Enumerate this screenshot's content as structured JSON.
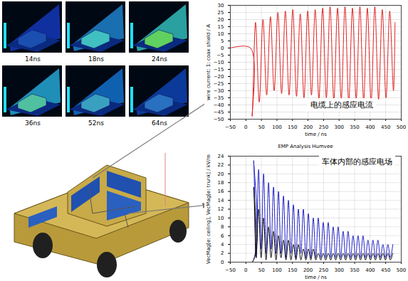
{
  "snapshots": {
    "labels": [
      "14ns",
      "18ns",
      "24ns",
      "36ns",
      "52ns",
      "64ns"
    ]
  },
  "chart_data": [
    {
      "type": "line",
      "annotation": "电缆上的感应电流",
      "x_label": "time / ns",
      "y_label": "wire current: 1: coax shield / A",
      "xlim": [
        -50,
        500
      ],
      "xticks": [
        -50,
        0,
        50,
        100,
        150,
        200,
        250,
        300,
        350,
        400,
        450,
        500
      ],
      "ylim": [
        -50,
        30
      ],
      "yticks": [
        -50,
        -45,
        -40,
        -35,
        -30,
        -25,
        -20,
        -15,
        -10,
        -5,
        0,
        5,
        10,
        15,
        20,
        25,
        30
      ],
      "grid": true,
      "x": [
        -50,
        15,
        20,
        31,
        43,
        55,
        67,
        79,
        91,
        103,
        115,
        127,
        139,
        151,
        163,
        175,
        187,
        199,
        211,
        223,
        235,
        247,
        259,
        271,
        283,
        295,
        307,
        319,
        331,
        343,
        355,
        367,
        379,
        391,
        403,
        415,
        427,
        439,
        451,
        463,
        475,
        480
      ],
      "series": [
        {
          "color": "#e02020",
          "values": [
            0,
            0,
            -48,
            18,
            -38,
            20,
            -33,
            22,
            -30,
            25,
            -32,
            26,
            -33,
            27,
            -34,
            24,
            -35,
            26,
            -33,
            27,
            -36,
            28,
            -35,
            29,
            -37,
            28,
            -36,
            29,
            -38,
            28,
            -36,
            29,
            -37,
            28,
            -38,
            29,
            -36,
            27,
            -35,
            26,
            -30,
            18
          ]
        }
      ]
    },
    {
      "type": "line",
      "title": "EMP Analysis Humvee",
      "annotation": "车体内部的感应电场",
      "x_label": "time / ns",
      "y_label": "VecMag[e: ceiling], VecMag[e: trunk] / kV/m",
      "xlim": [
        -50,
        500
      ],
      "xticks": [
        -50,
        0,
        50,
        100,
        150,
        200,
        250,
        300,
        350,
        400,
        450,
        500
      ],
      "ylim": [
        0,
        24
      ],
      "yticks": [
        0,
        2,
        4,
        6,
        8,
        10,
        12,
        14,
        16,
        18,
        20,
        22,
        24
      ],
      "grid": true,
      "x": [
        -50,
        20,
        25,
        33,
        41,
        49,
        57,
        65,
        73,
        81,
        89,
        97,
        105,
        113,
        121,
        129,
        137,
        145,
        153,
        161,
        169,
        177,
        185,
        193,
        201,
        209,
        217,
        225,
        233,
        241,
        249,
        257,
        265,
        273,
        281,
        289,
        297,
        305,
        313,
        321,
        329,
        337,
        345,
        353,
        361,
        369,
        377,
        385,
        393,
        401,
        409,
        417,
        425,
        433,
        441,
        449,
        457,
        465,
        473
      ],
      "series": [
        {
          "color": "#2020c8",
          "values": [
            0,
            0,
            23,
            1,
            21,
            3,
            20,
            2,
            18,
            3,
            17,
            2,
            16,
            2,
            15,
            1,
            14,
            2,
            13,
            1,
            12,
            2,
            12,
            1,
            11,
            1,
            10,
            1,
            10,
            1,
            9,
            1,
            9,
            1,
            8,
            1,
            8,
            1,
            7,
            1,
            7,
            1,
            6,
            1,
            6,
            1,
            6,
            1,
            5,
            1,
            5,
            1,
            5,
            1,
            4,
            1,
            4,
            1,
            4
          ]
        },
        {
          "color": "#101010",
          "values": [
            0,
            0,
            17,
            1,
            12,
            1,
            10,
            0.5,
            8,
            1,
            7,
            0.5,
            6,
            1,
            5,
            0.5,
            5,
            0.5,
            4,
            0.5,
            4,
            0.5,
            3,
            0.5,
            3,
            0.5,
            3,
            0.5,
            2,
            0.5,
            2,
            0.5,
            2,
            0.5,
            2,
            0.5,
            2,
            0.5,
            2,
            0.5,
            2,
            0.5,
            2,
            0.5,
            2,
            0.5,
            2,
            0.5,
            2,
            0.5,
            2,
            0.5,
            2,
            0.5,
            2,
            0.5,
            2,
            0.5,
            2
          ]
        }
      ]
    }
  ]
}
